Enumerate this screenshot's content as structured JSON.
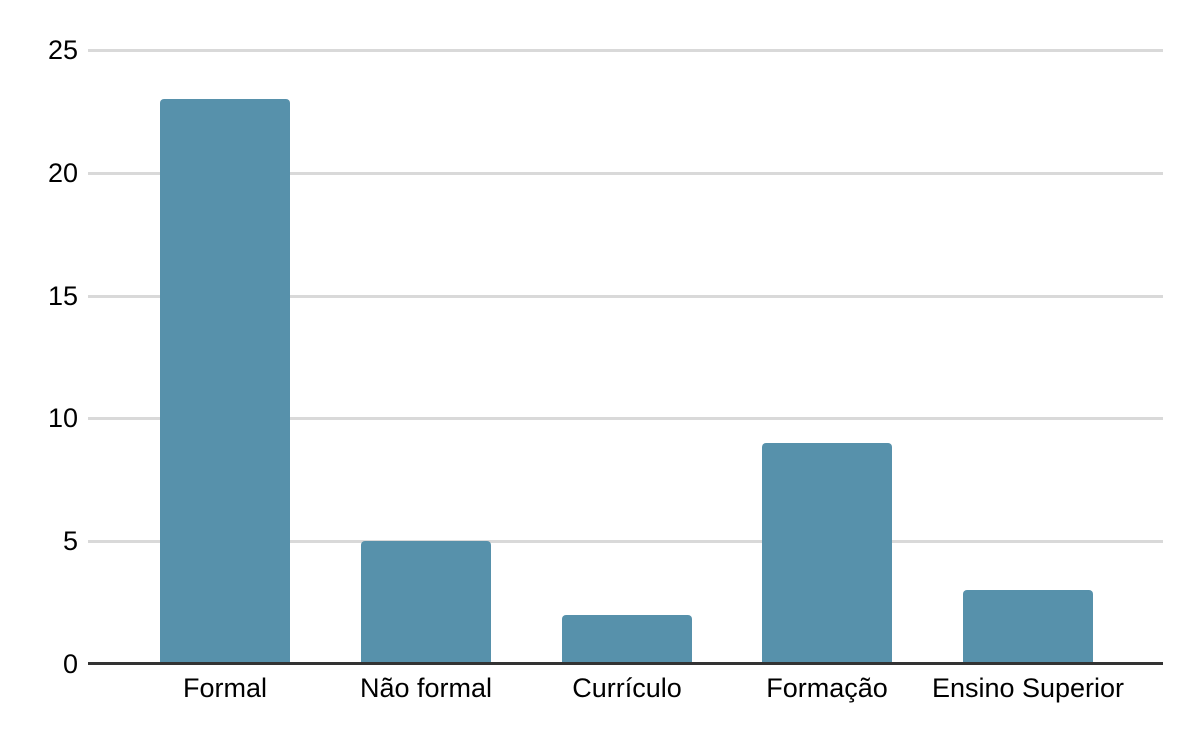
{
  "chart_data": {
    "type": "bar",
    "title": "",
    "xlabel": "",
    "ylabel": "",
    "categories": [
      "Formal",
      "Não formal",
      "Currículo",
      "Formação",
      "Ensino Superior"
    ],
    "values": [
      23,
      5,
      2,
      9,
      3
    ],
    "ylim": [
      0,
      25
    ],
    "yticks": [
      0,
      5,
      10,
      15,
      20,
      25
    ],
    "grid": true,
    "legend_position": "none",
    "bar_color": "#5791ab",
    "gridline_color": "#d9d9d9",
    "baseline_color": "#333333",
    "label_color": "#000000",
    "background_color": "#ffffff"
  }
}
